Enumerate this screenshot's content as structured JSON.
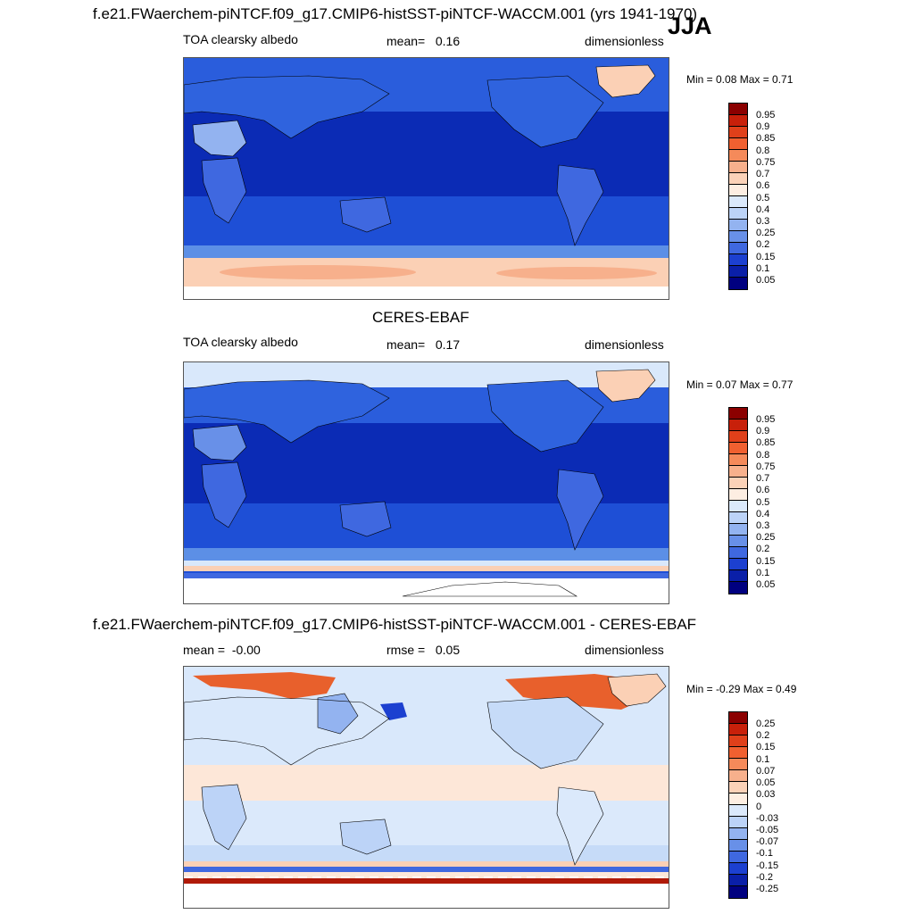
{
  "season": "JJA",
  "panels": [
    {
      "title": "f.e21.FWaerchem-piNTCF.f09_g17.CMIP6-histSST-piNTCF-WACCM.001 (yrs 1941-1970)",
      "left": "TOA clearsky albedo",
      "center_label": "mean=",
      "center_value": "0.16",
      "right": "dimensionless",
      "minmax": "Min =   0.08 Max =   0.71"
    },
    {
      "title": "CERES-EBAF",
      "left": "TOA clearsky albedo",
      "center_label": "mean=",
      "center_value": "0.17",
      "right": "dimensionless",
      "minmax": "Min =   0.07 Max =   0.77"
    },
    {
      "title": "f.e21.FWaerchem-piNTCF.f09_g17.CMIP6-histSST-piNTCF-WACCM.001 - CERES-EBAF",
      "left_label": "mean =",
      "left_value": "-0.00",
      "center_label": "rmse =",
      "center_value": "0.05",
      "right": "dimensionless",
      "minmax": "Min =  -0.29 Max =   0.49"
    }
  ],
  "chart_data": [
    {
      "type": "heatmap",
      "title": "f.e21.FWaerchem-piNTCF.f09_g17.CMIP6-histSST-piNTCF-WACCM.001 (yrs 1941-1970)",
      "variable": "TOA clearsky albedo",
      "units": "dimensionless",
      "mean": 0.16,
      "min": 0.08,
      "max": 0.71,
      "colorbar_levels": [
        0.05,
        0.1,
        0.15,
        0.2,
        0.25,
        0.3,
        0.4,
        0.5,
        0.6,
        0.7,
        0.75,
        0.8,
        0.85,
        0.9,
        0.95
      ]
    },
    {
      "type": "heatmap",
      "title": "CERES-EBAF",
      "variable": "TOA clearsky albedo",
      "units": "dimensionless",
      "mean": 0.17,
      "min": 0.07,
      "max": 0.77,
      "colorbar_levels": [
        0.05,
        0.1,
        0.15,
        0.2,
        0.25,
        0.3,
        0.4,
        0.5,
        0.6,
        0.7,
        0.75,
        0.8,
        0.85,
        0.9,
        0.95
      ]
    },
    {
      "type": "heatmap",
      "title": "f.e21.FWaerchem-piNTCF.f09_g17.CMIP6-histSST-piNTCF-WACCM.001 - CERES-EBAF",
      "units": "dimensionless",
      "mean": -0.0,
      "rmse": 0.05,
      "min": -0.29,
      "max": 0.49,
      "colorbar_levels": [
        -0.25,
        -0.2,
        -0.15,
        -0.1,
        -0.07,
        -0.05,
        -0.03,
        0,
        0.03,
        0.05,
        0.07,
        0.1,
        0.15,
        0.2,
        0.25
      ]
    }
  ],
  "colorbars": {
    "abs_labels": [
      "0.95",
      "0.9",
      "0.85",
      "0.8",
      "0.75",
      "0.7",
      "0.6",
      "0.5",
      "0.4",
      "0.3",
      "0.25",
      "0.2",
      "0.15",
      "0.1",
      "0.05"
    ],
    "diff_labels": [
      "0.25",
      "0.2",
      "0.15",
      "0.1",
      "0.07",
      "0.05",
      "0.03",
      "0",
      "-0.03",
      "-0.05",
      "-0.07",
      "-0.1",
      "-0.15",
      "-0.2",
      "-0.25"
    ],
    "colors": [
      "#8b0000",
      "#c8200a",
      "#e0401a",
      "#f06030",
      "#f58a5a",
      "#f7b08c",
      "#fbd2b8",
      "#fdeee2",
      "#dbe9fb",
      "#bcd3f7",
      "#93b3f0",
      "#6890e8",
      "#3f68e0",
      "#1c40d0",
      "#0a1fa8",
      "#000080"
    ]
  },
  "colors": {
    "deep_blue": "#0b2bb5",
    "mid_blue": "#1e4fd6",
    "light_blue": "#5c8fe6",
    "pale_blue": "#d9e8fb",
    "salmon": "#fbd0b5",
    "orange": "#e8602c",
    "dark_red": "#b01a08"
  }
}
